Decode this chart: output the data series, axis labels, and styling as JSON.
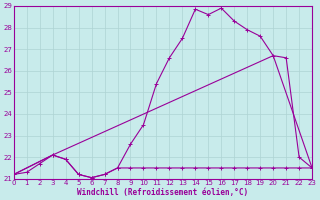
{
  "xlabel": "Windchill (Refroidissement éolien,°C)",
  "xlim": [
    0,
    23
  ],
  "ylim": [
    21,
    29
  ],
  "yticks": [
    21,
    22,
    23,
    24,
    25,
    26,
    27,
    28,
    29
  ],
  "xticks": [
    0,
    1,
    2,
    3,
    4,
    5,
    6,
    7,
    8,
    9,
    10,
    11,
    12,
    13,
    14,
    15,
    16,
    17,
    18,
    19,
    20,
    21,
    22,
    23
  ],
  "background_color": "#c8ebeb",
  "grid_color": "#aed4d4",
  "line_color": "#990099",
  "line1_x": [
    0,
    1,
    2,
    3,
    4,
    5,
    6,
    7,
    8,
    9,
    10,
    11,
    12,
    13,
    14,
    15,
    16,
    17,
    18,
    19,
    20,
    21,
    22,
    23
  ],
  "line1_y": [
    21.2,
    21.3,
    21.7,
    22.1,
    21.9,
    21.2,
    21.05,
    21.2,
    21.5,
    22.6,
    23.5,
    25.4,
    26.6,
    27.5,
    28.85,
    28.6,
    28.9,
    28.3,
    27.9,
    27.6,
    26.7,
    26.6,
    22.0,
    21.5
  ],
  "line2_x": [
    0,
    3,
    20,
    23
  ],
  "line2_y": [
    21.2,
    22.1,
    26.7,
    21.5
  ],
  "line3_x": [
    0,
    3,
    4,
    5,
    6,
    7,
    8,
    9,
    10,
    11,
    12,
    13,
    14,
    15,
    16,
    17,
    18,
    19,
    20,
    21,
    22,
    23
  ],
  "line3_y": [
    21.2,
    22.1,
    21.9,
    21.2,
    21.05,
    21.2,
    21.5,
    21.5,
    21.5,
    21.5,
    21.5,
    21.5,
    21.5,
    21.5,
    21.5,
    21.5,
    21.5,
    21.5,
    21.5,
    21.5,
    21.5,
    21.5
  ]
}
